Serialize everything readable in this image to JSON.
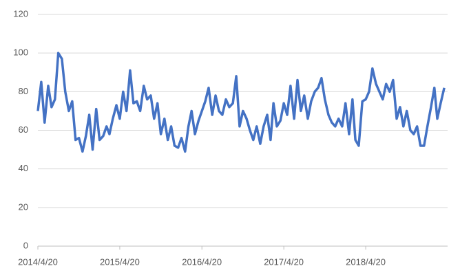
{
  "chart_data": {
    "type": "line",
    "x": [
      "2014/4/20",
      "2014/5/5",
      "2014/5/20",
      "2014/6/5",
      "2014/6/20",
      "2014/7/5",
      "2014/7/20",
      "2014/8/5",
      "2014/8/20",
      "2014/9/5",
      "2014/9/20",
      "2014/10/5",
      "2014/10/20",
      "2014/11/5",
      "2014/11/20",
      "2014/12/5",
      "2014/12/20",
      "2015/1/5",
      "2015/1/20",
      "2015/2/5",
      "2015/2/20",
      "2015/3/5",
      "2015/3/20",
      "2015/4/5",
      "2015/4/20",
      "2015/5/5",
      "2015/5/20",
      "2015/6/5",
      "2015/6/20",
      "2015/7/5",
      "2015/7/20",
      "2015/8/5",
      "2015/8/20",
      "2015/9/5",
      "2015/9/20",
      "2015/10/5",
      "2015/10/20",
      "2015/11/5",
      "2015/11/20",
      "2015/12/5",
      "2015/12/20",
      "2016/1/5",
      "2016/1/20",
      "2016/2/5",
      "2016/2/20",
      "2016/3/5",
      "2016/3/20",
      "2016/4/5",
      "2016/4/20",
      "2016/5/5",
      "2016/5/20",
      "2016/6/5",
      "2016/6/20",
      "2016/7/5",
      "2016/7/20",
      "2016/8/5",
      "2016/8/20",
      "2016/9/5",
      "2016/9/20",
      "2016/10/5",
      "2016/10/20",
      "2016/11/5",
      "2016/11/20",
      "2016/12/5",
      "2016/12/20",
      "2017/1/5",
      "2017/1/20",
      "2017/2/5",
      "2017/2/20",
      "2017/3/5",
      "2017/3/20",
      "2017/4/5",
      "2017/4/20",
      "2017/5/5",
      "2017/5/20",
      "2017/6/5",
      "2017/6/20",
      "2017/7/5",
      "2017/7/20",
      "2017/8/5",
      "2017/8/20",
      "2017/9/5",
      "2017/9/20",
      "2017/10/5",
      "2017/10/20",
      "2017/11/5",
      "2017/11/20",
      "2017/12/5",
      "2017/12/20",
      "2018/1/5",
      "2018/1/20",
      "2018/2/5",
      "2018/2/20",
      "2018/3/5",
      "2018/3/20",
      "2018/4/5",
      "2018/4/20",
      "2018/5/5",
      "2018/5/20",
      "2018/6/5",
      "2018/6/20",
      "2018/7/5",
      "2018/7/20",
      "2018/8/5",
      "2018/8/20",
      "2018/9/5",
      "2018/9/20",
      "2018/10/5",
      "2018/10/20",
      "2018/11/5",
      "2018/11/20",
      "2018/12/5",
      "2018/12/20",
      "2019/1/5",
      "2019/1/20",
      "2019/2/5",
      "2019/2/20",
      "2019/3/5",
      "2019/3/20",
      "2019/4/5"
    ],
    "values": [
      70,
      85,
      64,
      83,
      72,
      76,
      100,
      97,
      80,
      70,
      75,
      55,
      56,
      49,
      57,
      68,
      50,
      71,
      55,
      57,
      62,
      58,
      66,
      73,
      66,
      80,
      70,
      91,
      74,
      75,
      70,
      83,
      76,
      78,
      66,
      74,
      58,
      66,
      55,
      62,
      52,
      51,
      56,
      49,
      62,
      70,
      58,
      65,
      70,
      75,
      82,
      68,
      78,
      70,
      68,
      76,
      72,
      74,
      88,
      62,
      70,
      66,
      60,
      55,
      62,
      53,
      62,
      68,
      55,
      74,
      62,
      65,
      74,
      68,
      83,
      66,
      86,
      70,
      78,
      66,
      75,
      80,
      82,
      87,
      76,
      68,
      64,
      62,
      66,
      62,
      74,
      58,
      76,
      55,
      52,
      75,
      76,
      80,
      92,
      84,
      80,
      76,
      84,
      80,
      86,
      66,
      72,
      62,
      70,
      60,
      58,
      62,
      52,
      52,
      62,
      72,
      82,
      66,
      74,
      82
    ],
    "color": "#4472c4",
    "xlim": [
      "2014/4/20",
      "2019/4/20"
    ],
    "xticks": [
      "2014/4/20",
      "2015/4/20",
      "2016/4/20",
      "2017/4/20",
      "2018/4/20"
    ],
    "ylim": [
      0,
      120
    ],
    "yticks": [
      0,
      20,
      40,
      60,
      80,
      100,
      120
    ],
    "grid": true
  }
}
